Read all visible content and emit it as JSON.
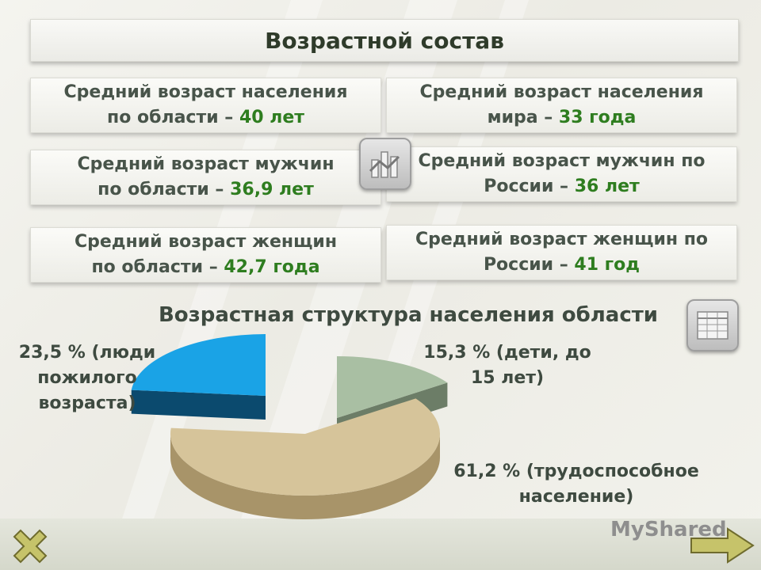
{
  "slide": {
    "title": "Возрастной состав",
    "stats": [
      {
        "line1": "Средний возраст населения",
        "prefix": "по области – ",
        "value": "40 лет"
      },
      {
        "line1": "Средний возраст населения",
        "prefix": "мира – ",
        "value": "33 года"
      },
      {
        "line1": "Средний возраст  мужчин",
        "prefix": "по области – ",
        "value": "36,9 лет"
      },
      {
        "line1": "Средний возраст  мужчин по",
        "prefix": "России – ",
        "value": "36 лет"
      },
      {
        "line1": "Средний возраст  женщин",
        "prefix": "по области – ",
        "value": "42,7 года"
      },
      {
        "line1": "Средний возраст  женщин по",
        "prefix": "России – ",
        "value": "41 год"
      }
    ],
    "brand": "MyShared"
  },
  "chart_data": {
    "type": "pie",
    "title": "Возрастная структура населения области",
    "slices": [
      {
        "value": 15.3,
        "label_lines": [
          "15,3 % (дети, до",
          "15 лет)"
        ],
        "color": "#a9bfa3",
        "side": "#6c7d67"
      },
      {
        "value": 61.2,
        "label_lines": [
          "61,2 % (трудоспособное",
          "население)"
        ],
        "color": "#d6c49a",
        "side": "#a89469"
      },
      {
        "value": 23.5,
        "label_lines": [
          "23,5 % (люди",
          "пожилого",
          "возраста)"
        ],
        "color": "#1aa3e6",
        "side": "#0b4a6e"
      }
    ]
  },
  "colors": {
    "accent_value": "#2e7d1f",
    "text": "#48544a"
  }
}
